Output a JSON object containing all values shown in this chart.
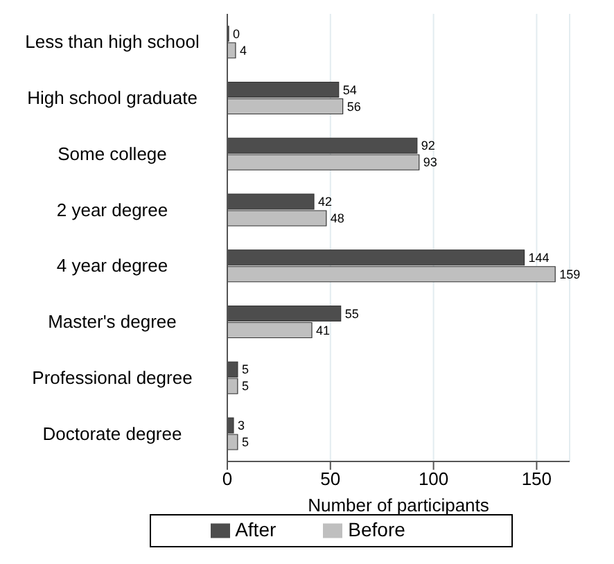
{
  "chart_data": {
    "type": "bar",
    "orientation": "horizontal",
    "xlabel": "Number of participants",
    "categories": [
      "Less than high school",
      "High school graduate",
      "Some college",
      "2 year degree",
      "4 year degree",
      "Master's degree",
      "Professional degree",
      "Doctorate degree"
    ],
    "series": [
      {
        "name": "After",
        "color": "#4d4d4d",
        "values": [
          0,
          54,
          92,
          42,
          144,
          55,
          5,
          3
        ]
      },
      {
        "name": "Before",
        "color": "#bfbfbf",
        "values": [
          4,
          56,
          93,
          48,
          159,
          41,
          5,
          5
        ]
      }
    ],
    "xlim": [
      0,
      166
    ],
    "xticks": [
      0,
      50,
      100,
      150
    ],
    "grid": "x",
    "legend": "bottom",
    "data_labels": true
  }
}
